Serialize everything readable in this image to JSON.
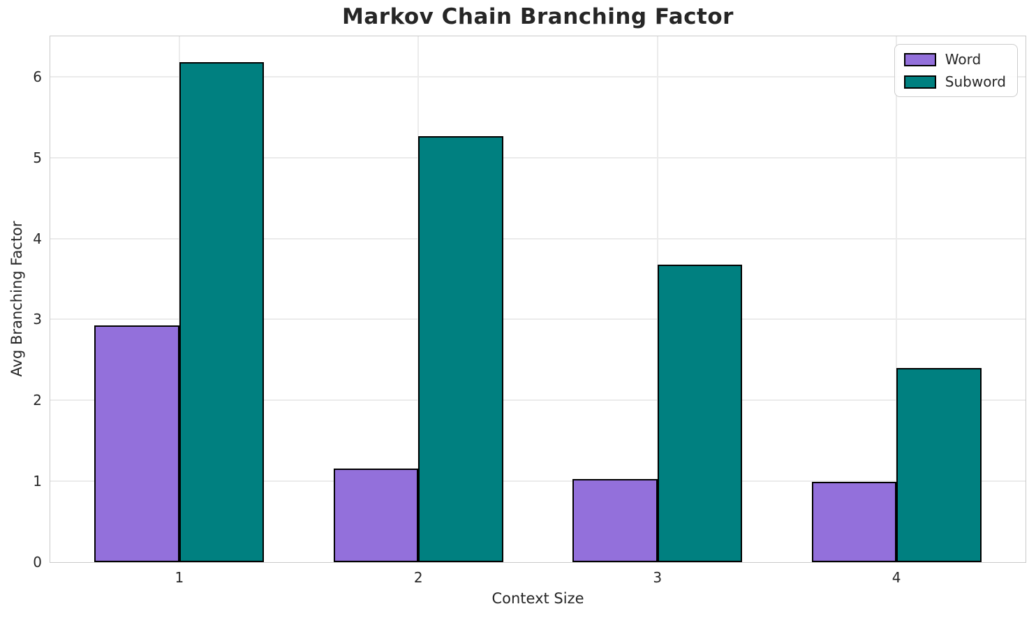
{
  "chart_data": {
    "type": "bar",
    "title": "Markov Chain Branching Factor",
    "xlabel": "Context Size",
    "ylabel": "Avg Branching Factor",
    "categories": [
      "1",
      "2",
      "3",
      "4"
    ],
    "x_positions": [
      1,
      2,
      3,
      4
    ],
    "series": [
      {
        "name": "Word",
        "color": "#9370DB",
        "values": [
          2.93,
          1.16,
          1.03,
          0.99
        ]
      },
      {
        "name": "Subword",
        "color": "#008080",
        "values": [
          6.18,
          5.27,
          3.68,
          2.4
        ]
      }
    ],
    "bar_width": 0.355,
    "bar_edge_color": "#000000",
    "ylim": [
      0,
      6.5
    ],
    "yticks": [
      0,
      1,
      2,
      3,
      4,
      5,
      6
    ],
    "xlim": [
      0.46,
      4.54
    ],
    "grid": true,
    "grid_color": "#ebebeb",
    "legend_position": "upper right"
  }
}
